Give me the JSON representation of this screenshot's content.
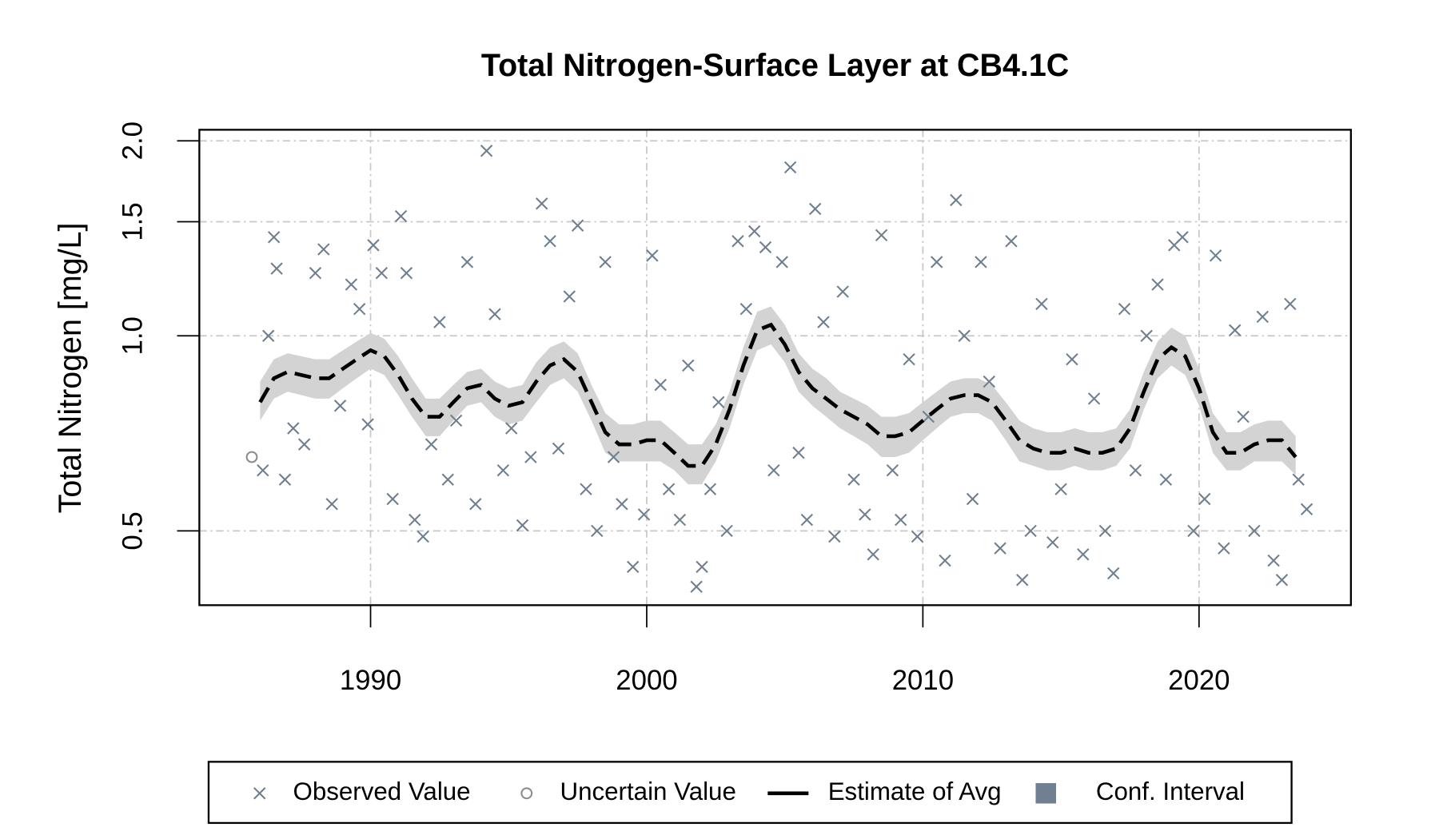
{
  "chart_data": {
    "type": "line",
    "title": "Total Nitrogen-Surface Layer at CB4.1C",
    "y_label": "Total Nitrogen [mg/L]",
    "xlim": [
      1983.8,
      2025.5
    ],
    "xticks": [
      1990,
      2000,
      2010,
      2020
    ],
    "ylim": [
      0.384,
      2.08
    ],
    "yticks": [
      {
        "value": 0.5,
        "label": "0.5"
      },
      {
        "value": 1.0,
        "label": "1.0"
      },
      {
        "value": 1.5,
        "label": "1.5"
      },
      {
        "value": 2.0,
        "label": "2.0"
      }
    ],
    "ylog": true,
    "grid": true,
    "legend": "bottom",
    "series": [
      {
        "name": "Observed Value",
        "type": "scatter",
        "marker": "x",
        "color": "#6f7f8f",
        "x": [
          1986.1,
          1986.3,
          1986.5,
          1986.6,
          1986.9,
          1987.2,
          1987.6,
          1988.0,
          1988.3,
          1988.6,
          1988.9,
          1989.3,
          1989.6,
          1989.9,
          1990.1,
          1990.4,
          1990.8,
          1991.1,
          1991.3,
          1991.6,
          1991.9,
          1992.2,
          1992.5,
          1992.8,
          1993.1,
          1993.5,
          1993.8,
          1994.2,
          1994.5,
          1994.8,
          1995.1,
          1995.5,
          1995.8,
          1996.2,
          1996.5,
          1996.8,
          1997.2,
          1997.5,
          1997.8,
          1998.2,
          1998.5,
          1998.8,
          1999.1,
          1999.5,
          1999.9,
          2000.2,
          2000.5,
          2000.8,
          2001.2,
          2001.5,
          2001.8,
          2002.0,
          2002.3,
          2002.6,
          2002.9,
          2003.3,
          2003.6,
          2003.9,
          2004.3,
          2004.6,
          2004.9,
          2005.2,
          2005.5,
          2005.8,
          2006.1,
          2006.4,
          2006.8,
          2007.1,
          2007.5,
          2007.9,
          2008.2,
          2008.5,
          2008.9,
          2009.2,
          2009.5,
          2009.8,
          2010.2,
          2010.5,
          2010.8,
          2011.2,
          2011.5,
          2011.8,
          2012.1,
          2012.4,
          2012.8,
          2013.2,
          2013.6,
          2013.9,
          2014.3,
          2014.7,
          2015.0,
          2015.4,
          2015.8,
          2016.2,
          2016.6,
          2016.9,
          2017.3,
          2017.7,
          2018.1,
          2018.5,
          2018.8,
          2019.1,
          2019.4,
          2019.8,
          2020.2,
          2020.6,
          2020.9,
          2021.3,
          2021.6,
          2022.0,
          2022.3,
          2022.7,
          2023.0,
          2023.3,
          2023.6,
          2023.9
        ],
        "values": [
          0.62,
          1.0,
          1.42,
          1.27,
          0.6,
          0.72,
          0.68,
          1.25,
          1.36,
          0.55,
          0.78,
          1.2,
          1.1,
          0.73,
          1.38,
          1.25,
          0.56,
          1.53,
          1.25,
          0.52,
          0.49,
          0.68,
          1.05,
          0.6,
          0.74,
          1.3,
          0.55,
          1.93,
          1.08,
          0.62,
          0.72,
          0.51,
          0.65,
          1.6,
          1.4,
          0.67,
          1.15,
          1.48,
          0.58,
          0.5,
          1.3,
          0.65,
          0.55,
          0.44,
          0.53,
          1.33,
          0.84,
          0.58,
          0.52,
          0.9,
          0.41,
          0.44,
          0.58,
          0.79,
          0.5,
          1.4,
          1.1,
          1.45,
          1.37,
          0.62,
          1.3,
          1.82,
          0.66,
          0.52,
          1.57,
          1.05,
          0.49,
          1.17,
          0.6,
          0.53,
          0.46,
          1.43,
          0.62,
          0.52,
          0.92,
          0.49,
          0.75,
          1.3,
          0.45,
          1.62,
          1.0,
          0.56,
          1.3,
          0.85,
          0.47,
          1.4,
          0.42,
          0.5,
          1.12,
          0.48,
          0.58,
          0.92,
          0.46,
          0.8,
          0.5,
          0.43,
          1.1,
          0.62,
          1.0,
          1.2,
          0.6,
          1.38,
          1.42,
          0.5,
          0.56,
          1.33,
          0.47,
          1.02,
          0.75,
          0.5,
          1.07,
          0.45,
          0.42,
          1.12,
          0.6,
          0.54
        ]
      },
      {
        "name": "Uncertain Value",
        "type": "scatter",
        "marker": "circle",
        "color": "#8c8c8c",
        "x": [
          1985.7
        ],
        "values": [
          0.65
        ]
      },
      {
        "name": "Estimate of Avg",
        "type": "line",
        "color": "#000000",
        "x": [
          1986.0,
          1986.5,
          1987.0,
          1987.5,
          1988.0,
          1988.5,
          1989.0,
          1989.5,
          1990.0,
          1990.5,
          1991.0,
          1991.5,
          1992.0,
          1992.5,
          1993.0,
          1993.5,
          1994.0,
          1994.5,
          1995.0,
          1995.5,
          1996.0,
          1996.5,
          1997.0,
          1997.5,
          1998.0,
          1998.5,
          1999.0,
          1999.5,
          2000.0,
          2000.5,
          2001.0,
          2001.5,
          2002.0,
          2002.5,
          2003.0,
          2003.5,
          2004.0,
          2004.5,
          2005.0,
          2005.5,
          2006.0,
          2006.5,
          2007.0,
          2007.5,
          2008.0,
          2008.5,
          2009.0,
          2009.5,
          2010.0,
          2010.5,
          2011.0,
          2011.5,
          2012.0,
          2012.5,
          2013.0,
          2013.5,
          2014.0,
          2014.5,
          2015.0,
          2015.5,
          2016.0,
          2016.5,
          2017.0,
          2017.5,
          2018.0,
          2018.5,
          2019.0,
          2019.5,
          2020.0,
          2020.5,
          2021.0,
          2021.5,
          2022.0,
          2022.5,
          2023.0,
          2023.5
        ],
        "values": [
          0.79,
          0.86,
          0.88,
          0.87,
          0.86,
          0.86,
          0.89,
          0.92,
          0.95,
          0.93,
          0.87,
          0.8,
          0.75,
          0.75,
          0.79,
          0.83,
          0.84,
          0.8,
          0.78,
          0.79,
          0.85,
          0.9,
          0.92,
          0.88,
          0.79,
          0.71,
          0.68,
          0.68,
          0.69,
          0.69,
          0.66,
          0.63,
          0.63,
          0.68,
          0.77,
          0.9,
          1.02,
          1.04,
          0.97,
          0.88,
          0.83,
          0.8,
          0.77,
          0.75,
          0.73,
          0.7,
          0.7,
          0.71,
          0.74,
          0.77,
          0.8,
          0.81,
          0.81,
          0.79,
          0.74,
          0.69,
          0.67,
          0.66,
          0.66,
          0.67,
          0.66,
          0.66,
          0.67,
          0.72,
          0.82,
          0.92,
          0.96,
          0.93,
          0.83,
          0.71,
          0.66,
          0.66,
          0.68,
          0.69,
          0.69,
          0.65
        ]
      },
      {
        "name": "Conf. Interval",
        "type": "band",
        "color": "#d3d3d3",
        "legend_color": "#708090",
        "x": [
          1986.0,
          1986.5,
          1987.0,
          1987.5,
          1988.0,
          1988.5,
          1989.0,
          1989.5,
          1990.0,
          1990.5,
          1991.0,
          1991.5,
          1992.0,
          1992.5,
          1993.0,
          1993.5,
          1994.0,
          1994.5,
          1995.0,
          1995.5,
          1996.0,
          1996.5,
          1997.0,
          1997.5,
          1998.0,
          1998.5,
          1999.0,
          1999.5,
          2000.0,
          2000.5,
          2001.0,
          2001.5,
          2002.0,
          2002.5,
          2003.0,
          2003.5,
          2004.0,
          2004.5,
          2005.0,
          2005.5,
          2006.0,
          2006.5,
          2007.0,
          2007.5,
          2008.0,
          2008.5,
          2009.0,
          2009.5,
          2010.0,
          2010.5,
          2011.0,
          2011.5,
          2012.0,
          2012.5,
          2013.0,
          2013.5,
          2014.0,
          2014.5,
          2015.0,
          2015.5,
          2016.0,
          2016.5,
          2017.0,
          2017.5,
          2018.0,
          2018.5,
          2019.0,
          2019.5,
          2020.0,
          2020.5,
          2021.0,
          2021.5,
          2022.0,
          2022.5,
          2023.0,
          2023.5
        ],
        "upper": [
          0.85,
          0.92,
          0.94,
          0.93,
          0.92,
          0.92,
          0.95,
          0.98,
          1.01,
          0.99,
          0.93,
          0.86,
          0.8,
          0.8,
          0.84,
          0.88,
          0.89,
          0.85,
          0.83,
          0.84,
          0.91,
          0.96,
          0.98,
          0.94,
          0.84,
          0.76,
          0.73,
          0.73,
          0.74,
          0.74,
          0.71,
          0.68,
          0.68,
          0.73,
          0.82,
          0.96,
          1.09,
          1.11,
          1.04,
          0.94,
          0.89,
          0.86,
          0.82,
          0.8,
          0.78,
          0.75,
          0.75,
          0.76,
          0.79,
          0.82,
          0.85,
          0.86,
          0.86,
          0.84,
          0.79,
          0.74,
          0.72,
          0.71,
          0.71,
          0.72,
          0.71,
          0.71,
          0.72,
          0.77,
          0.88,
          0.98,
          1.03,
          1.0,
          0.89,
          0.76,
          0.71,
          0.71,
          0.73,
          0.74,
          0.74,
          0.7
        ],
        "lower": [
          0.74,
          0.8,
          0.82,
          0.81,
          0.8,
          0.8,
          0.83,
          0.86,
          0.89,
          0.87,
          0.81,
          0.75,
          0.7,
          0.7,
          0.74,
          0.78,
          0.79,
          0.75,
          0.73,
          0.74,
          0.79,
          0.84,
          0.86,
          0.82,
          0.74,
          0.66,
          0.64,
          0.64,
          0.64,
          0.64,
          0.62,
          0.59,
          0.59,
          0.64,
          0.72,
          0.84,
          0.95,
          0.97,
          0.91,
          0.82,
          0.78,
          0.75,
          0.72,
          0.7,
          0.68,
          0.65,
          0.65,
          0.66,
          0.69,
          0.72,
          0.75,
          0.76,
          0.76,
          0.74,
          0.69,
          0.64,
          0.63,
          0.62,
          0.62,
          0.63,
          0.62,
          0.62,
          0.63,
          0.67,
          0.77,
          0.86,
          0.9,
          0.87,
          0.78,
          0.66,
          0.62,
          0.62,
          0.64,
          0.64,
          0.64,
          0.61
        ]
      }
    ]
  }
}
